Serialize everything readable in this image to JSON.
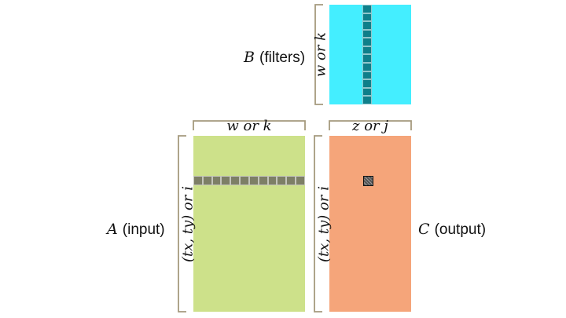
{
  "matrix_b": {
    "name": "B",
    "desc": "(filters)",
    "side_label": "w or k",
    "fill": "#44eeff",
    "highlight": "#0f7f8a",
    "highlight_cells": 12
  },
  "matrix_a": {
    "name": "A",
    "desc": "(input)",
    "top_label": "w or k",
    "side_label": "(tx, ty) or i",
    "fill": "#cde18a",
    "highlight": "#7d7f66",
    "highlight_cells": 12
  },
  "matrix_c": {
    "name": "C",
    "desc": "(output)",
    "top_label": "z or j",
    "side_label": "(tx, ty) or i",
    "fill": "#f5a57a",
    "highlight": "#333333"
  }
}
